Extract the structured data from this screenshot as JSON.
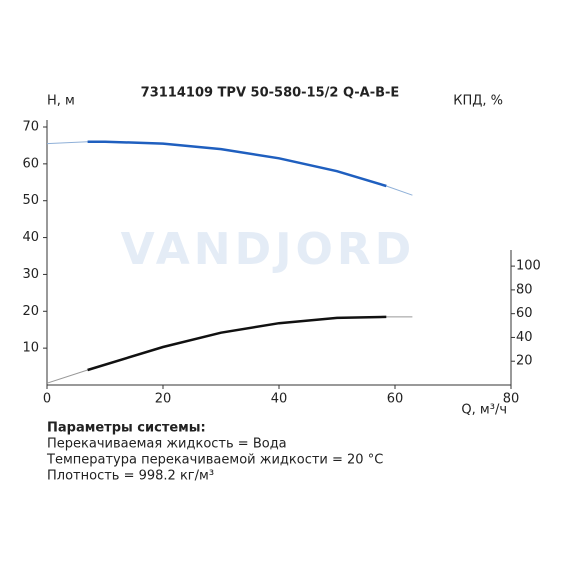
{
  "chart_data": {
    "type": "line",
    "title": "73114109 TPV 50-580-15/2 Q-A-B-E",
    "y_label": "Н, м",
    "y2_label": "КПД, %",
    "x_label": "Q, м³/ч",
    "watermark": "VANDJORD",
    "xlim": [
      0,
      80
    ],
    "xticks": [
      0,
      20,
      40,
      60,
      80
    ],
    "ylim": [
      0,
      70
    ],
    "yticks": [
      10,
      20,
      30,
      40,
      50,
      60,
      70
    ],
    "y2lim": [
      0,
      217
    ],
    "y2ticks": [
      20,
      40,
      60,
      80,
      100
    ],
    "series": [
      {
        "color": "#8fb0d8",
        "width": 1,
        "x": [
          0,
          7,
          10,
          20,
          30,
          40,
          50,
          58.5,
          63
        ],
        "values": [
          65.5,
          66,
          66,
          65.5,
          64,
          61.5,
          58,
          54,
          51.5
        ]
      },
      {
        "color": "#1f5fbf",
        "width": 2.5,
        "x": [
          7,
          10,
          20,
          30,
          40,
          50,
          58.5
        ],
        "values": [
          66,
          66,
          65.5,
          64,
          61.5,
          58,
          54
        ]
      },
      {
        "color": "#999999",
        "width": 1,
        "axis": "y2",
        "x": [
          0,
          7,
          20,
          30,
          40,
          50,
          58.5,
          63
        ],
        "values": [
          1.5,
          12.6,
          32,
          44,
          52,
          56.4,
          57.3,
          57.3
        ]
      },
      {
        "color": "#111111",
        "width": 2.5,
        "axis": "y2",
        "x": [
          7,
          20,
          30,
          40,
          50,
          58.5
        ],
        "values": [
          12.6,
          32,
          44,
          52,
          56.4,
          57.3
        ]
      }
    ]
  },
  "parameters": {
    "title": "Параметры системы:",
    "lines": [
      "Перекачиваемая жидкость = Вода",
      "Температура перекачиваемой жидкости = 20 °C",
      "Плотность = 998.2 кг/м³"
    ]
  }
}
